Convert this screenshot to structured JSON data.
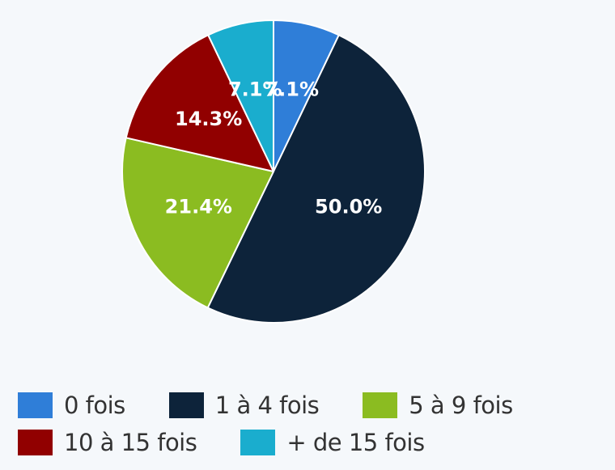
{
  "chart_data": {
    "type": "pie",
    "title": "",
    "categories": [
      "0 fois",
      "1 à 4 fois",
      "5 à 9 fois",
      "10 à 15 fois",
      "+ de 15 fois"
    ],
    "values": [
      7.1,
      50.0,
      21.4,
      14.3,
      7.1
    ],
    "labels": [
      "7.1%",
      "50.0%",
      "21.4%",
      "14.3%",
      "7.1%"
    ],
    "colors": [
      "#2f7ed8",
      "#0d233a",
      "#8bbc21",
      "#910000",
      "#1aadce"
    ],
    "start_angle_deg": 0,
    "direction": "clockwise",
    "legend_position": "bottom"
  },
  "legend": {
    "rows": [
      [
        {
          "label": "0 fois",
          "color": "#2f7ed8"
        },
        {
          "label": "1 à 4 fois",
          "color": "#0d233a"
        },
        {
          "label": "5 à 9 fois",
          "color": "#8bbc21"
        }
      ],
      [
        {
          "label": "10 à 15 fois",
          "color": "#910000"
        },
        {
          "label": "+ de 15 fois",
          "color": "#1aadce"
        }
      ]
    ]
  }
}
